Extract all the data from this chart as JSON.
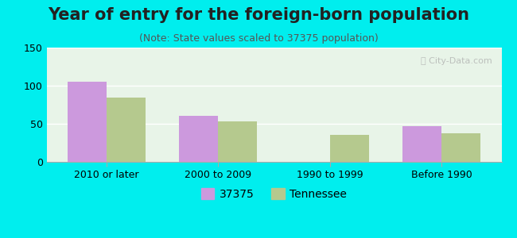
{
  "title": "Year of entry for the foreign-born population",
  "subtitle": "(Note: State values scaled to 37375 population)",
  "categories": [
    "2010 or later",
    "2000 to 2009",
    "1990 to 1999",
    "Before 1990"
  ],
  "values_city": [
    105,
    60,
    0,
    47
  ],
  "values_state": [
    84,
    53,
    35,
    37
  ],
  "city_color": "#cc99dd",
  "state_color": "#b5c98e",
  "ylim": [
    0,
    150
  ],
  "yticks": [
    0,
    50,
    100,
    150
  ],
  "legend_city": "37375",
  "legend_state": "Tennessee",
  "background_color": "#00eeee",
  "plot_bg_top": "#e8f5e8",
  "plot_bg_bottom": "#ffffff",
  "bar_width": 0.35,
  "title_fontsize": 15,
  "subtitle_fontsize": 9,
  "tick_fontsize": 9,
  "legend_fontsize": 10
}
